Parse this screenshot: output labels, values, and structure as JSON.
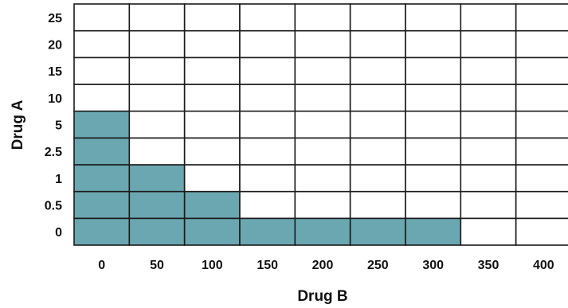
{
  "chart_data": {
    "type": "heatmap",
    "xlabel": "Drug B",
    "ylabel": "Drug A",
    "x_categories": [
      "0",
      "50",
      "100",
      "150",
      "200",
      "250",
      "300",
      "350",
      "400"
    ],
    "y_categories": [
      "0",
      "0.5",
      "1",
      "2.5",
      "5",
      "10",
      "15",
      "20",
      "25"
    ],
    "filled": [
      [
        1,
        1,
        1,
        1,
        1,
        1,
        1,
        0,
        0
      ],
      [
        1,
        1,
        1,
        0,
        0,
        0,
        0,
        0,
        0
      ],
      [
        1,
        1,
        0,
        0,
        0,
        0,
        0,
        0,
        0
      ],
      [
        1,
        0,
        0,
        0,
        0,
        0,
        0,
        0,
        0
      ],
      [
        1,
        0,
        0,
        0,
        0,
        0,
        0,
        0,
        0
      ],
      [
        0,
        0,
        0,
        0,
        0,
        0,
        0,
        0,
        0
      ],
      [
        0,
        0,
        0,
        0,
        0,
        0,
        0,
        0,
        0
      ],
      [
        0,
        0,
        0,
        0,
        0,
        0,
        0,
        0,
        0
      ],
      [
        0,
        0,
        0,
        0,
        0,
        0,
        0,
        0,
        0
      ]
    ],
    "fill_color": "#6aa7b0",
    "empty_color": "#ffffff",
    "grid_color": "#1a1a1a",
    "grid": true
  }
}
